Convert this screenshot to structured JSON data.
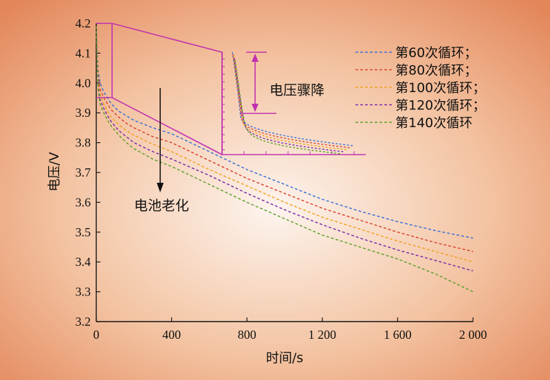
{
  "chart_data": {
    "type": "line",
    "xlabel": "时间/s",
    "ylabel": "电压/V",
    "xlim": [
      0,
      2000
    ],
    "ylim": [
      3.2,
      4.2
    ],
    "x_ticks": [
      0,
      400,
      800,
      1200,
      1600,
      2000
    ],
    "x_tick_labels": [
      "0",
      "400",
      "800",
      "1 200",
      "1 600",
      "2 000"
    ],
    "y_ticks": [
      3.2,
      3.3,
      3.4,
      3.5,
      3.6,
      3.7,
      3.8,
      3.9,
      4.0,
      4.1,
      4.2
    ],
    "y_tick_labels": [
      "3.2",
      "3.3",
      "3.4",
      "3.5",
      "3.6",
      "3.7",
      "3.8",
      "3.9",
      "4.0",
      "4.1",
      "4.2"
    ],
    "legend_position": "top-right",
    "grid": false,
    "series": [
      {
        "name": "第60次循环；",
        "color": "#3a6fd8",
        "x": [
          0,
          5,
          10,
          20,
          40,
          60,
          80,
          120,
          160,
          200,
          300,
          400,
          600,
          800,
          1000,
          1200,
          1400,
          1600,
          1800,
          2000
        ],
        "y": [
          4.19,
          4.1,
          4.04,
          4.0,
          3.97,
          3.95,
          3.93,
          3.905,
          3.89,
          3.875,
          3.85,
          3.83,
          3.77,
          3.71,
          3.66,
          3.61,
          3.57,
          3.535,
          3.505,
          3.48
        ]
      },
      {
        "name": "第80次循环；",
        "color": "#d9442a",
        "x": [
          0,
          5,
          10,
          20,
          40,
          60,
          80,
          120,
          160,
          200,
          300,
          400,
          600,
          800,
          1000,
          1200,
          1400,
          1600,
          1800,
          2000
        ],
        "y": [
          4.19,
          4.09,
          4.02,
          3.98,
          3.95,
          3.93,
          3.91,
          3.885,
          3.865,
          3.85,
          3.82,
          3.8,
          3.74,
          3.68,
          3.63,
          3.58,
          3.54,
          3.5,
          3.465,
          3.435
        ]
      },
      {
        "name": "第100次循环；",
        "color": "#f0a020",
        "x": [
          0,
          5,
          10,
          20,
          40,
          60,
          80,
          120,
          160,
          200,
          300,
          400,
          600,
          800,
          1000,
          1200,
          1400,
          1600,
          1800,
          2000
        ],
        "y": [
          4.19,
          4.08,
          4.0,
          3.96,
          3.93,
          3.905,
          3.885,
          3.86,
          3.84,
          3.825,
          3.795,
          3.77,
          3.71,
          3.655,
          3.6,
          3.55,
          3.51,
          3.47,
          3.435,
          3.4
        ]
      },
      {
        "name": "第120次循环；",
        "color": "#7a2ca8",
        "x": [
          0,
          5,
          10,
          20,
          40,
          60,
          80,
          120,
          160,
          200,
          300,
          400,
          600,
          800,
          1000,
          1200,
          1400,
          1600,
          1800,
          2000
        ],
        "y": [
          4.19,
          4.07,
          3.99,
          3.945,
          3.915,
          3.89,
          3.87,
          3.84,
          3.82,
          3.8,
          3.77,
          3.745,
          3.69,
          3.63,
          3.575,
          3.525,
          3.48,
          3.44,
          3.405,
          3.37
        ]
      },
      {
        "name": "第140次循环",
        "color": "#5aa02c",
        "x": [
          0,
          5,
          10,
          20,
          40,
          60,
          80,
          120,
          160,
          200,
          300,
          400,
          600,
          800,
          1000,
          1200,
          1400,
          1600,
          1800,
          2000
        ],
        "y": [
          4.19,
          4.06,
          3.98,
          3.93,
          3.9,
          3.875,
          3.855,
          3.825,
          3.8,
          3.78,
          3.745,
          3.72,
          3.66,
          3.6,
          3.545,
          3.49,
          3.45,
          3.41,
          3.36,
          3.3
        ]
      }
    ],
    "annotations": {
      "aging": "电池老化",
      "drop": "电压骤降"
    },
    "colors": {
      "inset_frame": "#c030b0",
      "bg_center": "#fdf2ea",
      "bg_edge": "#e48a5c"
    }
  }
}
